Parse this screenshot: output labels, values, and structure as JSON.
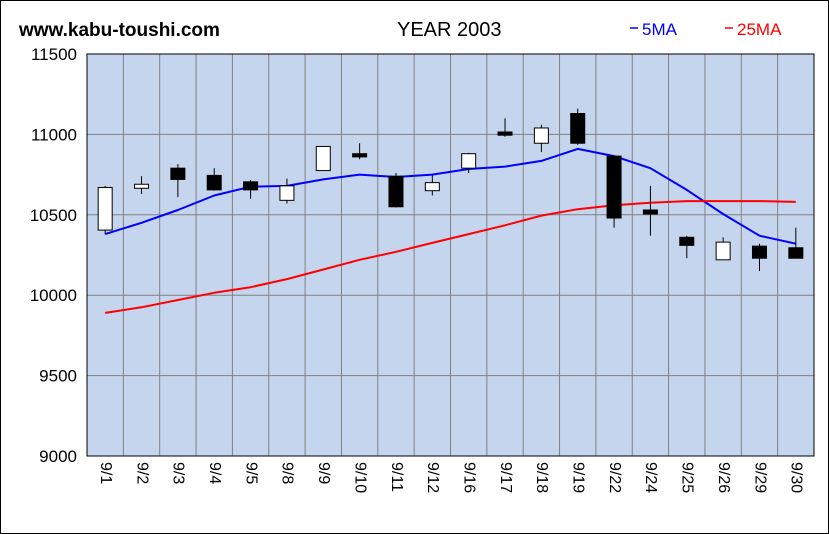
{
  "header": {
    "site": "www.kabu-toushi.com",
    "title": "YEAR 2003"
  },
  "chart_data": {
    "type": "candlestick",
    "title": "YEAR 2003",
    "ylim": [
      9000,
      11500
    ],
    "yticks": [
      9000,
      9500,
      10000,
      10500,
      11000,
      11500
    ],
    "grid": true,
    "legend_position": "top-right",
    "colors": {
      "plot_bg": "#c6d5ee",
      "up_body": "#ffffff",
      "down_body": "#000000",
      "ma5": "#0000ff",
      "ma25": "#ff0000",
      "grid": "#808080"
    },
    "categories": [
      "9/1",
      "9/2",
      "9/3",
      "9/4",
      "9/5",
      "9/8",
      "9/9",
      "9/10",
      "9/11",
      "9/12",
      "9/16",
      "9/17",
      "9/18",
      "9/19",
      "9/22",
      "9/24",
      "9/25",
      "9/26",
      "9/29",
      "9/30"
    ],
    "ohlc": [
      {
        "open": 10405,
        "high": 10680,
        "low": 10380,
        "close": 10670
      },
      {
        "open": 10665,
        "high": 10740,
        "low": 10630,
        "close": 10690
      },
      {
        "open": 10790,
        "high": 10815,
        "low": 10610,
        "close": 10720
      },
      {
        "open": 10745,
        "high": 10790,
        "low": 10650,
        "close": 10655
      },
      {
        "open": 10705,
        "high": 10715,
        "low": 10600,
        "close": 10655
      },
      {
        "open": 10590,
        "high": 10725,
        "low": 10570,
        "close": 10680
      },
      {
        "open": 10775,
        "high": 10925,
        "low": 10775,
        "close": 10925
      },
      {
        "open": 10880,
        "high": 10945,
        "low": 10845,
        "close": 10860
      },
      {
        "open": 10740,
        "high": 10760,
        "low": 10545,
        "close": 10550
      },
      {
        "open": 10650,
        "high": 10745,
        "low": 10620,
        "close": 10700
      },
      {
        "open": 10790,
        "high": 10885,
        "low": 10760,
        "close": 10880
      },
      {
        "open": 11015,
        "high": 11100,
        "low": 10985,
        "close": 10995
      },
      {
        "open": 10945,
        "high": 11060,
        "low": 10890,
        "close": 11040
      },
      {
        "open": 11130,
        "high": 11160,
        "low": 10935,
        "close": 10945
      },
      {
        "open": 10865,
        "high": 10870,
        "low": 10420,
        "close": 10480
      },
      {
        "open": 10530,
        "high": 10680,
        "low": 10370,
        "close": 10505
      },
      {
        "open": 10360,
        "high": 10370,
        "low": 10230,
        "close": 10310
      },
      {
        "open": 10220,
        "high": 10360,
        "low": 10220,
        "close": 10330
      },
      {
        "open": 10305,
        "high": 10320,
        "low": 10150,
        "close": 10230
      },
      {
        "open": 10295,
        "high": 10420,
        "low": 10230,
        "close": 10230
      }
    ],
    "series": [
      {
        "name": "5MA",
        "values": [
          10380,
          10450,
          10530,
          10620,
          10675,
          10680,
          10720,
          10750,
          10735,
          10750,
          10785,
          10800,
          10835,
          10910,
          10865,
          10790,
          10655,
          10505,
          10370,
          10320
        ]
      },
      {
        "name": "25MA",
        "values": [
          9890,
          9925,
          9970,
          10015,
          10050,
          10100,
          10160,
          10220,
          10270,
          10325,
          10380,
          10435,
          10495,
          10535,
          10560,
          10575,
          10585,
          10585,
          10585,
          10580
        ]
      }
    ]
  }
}
